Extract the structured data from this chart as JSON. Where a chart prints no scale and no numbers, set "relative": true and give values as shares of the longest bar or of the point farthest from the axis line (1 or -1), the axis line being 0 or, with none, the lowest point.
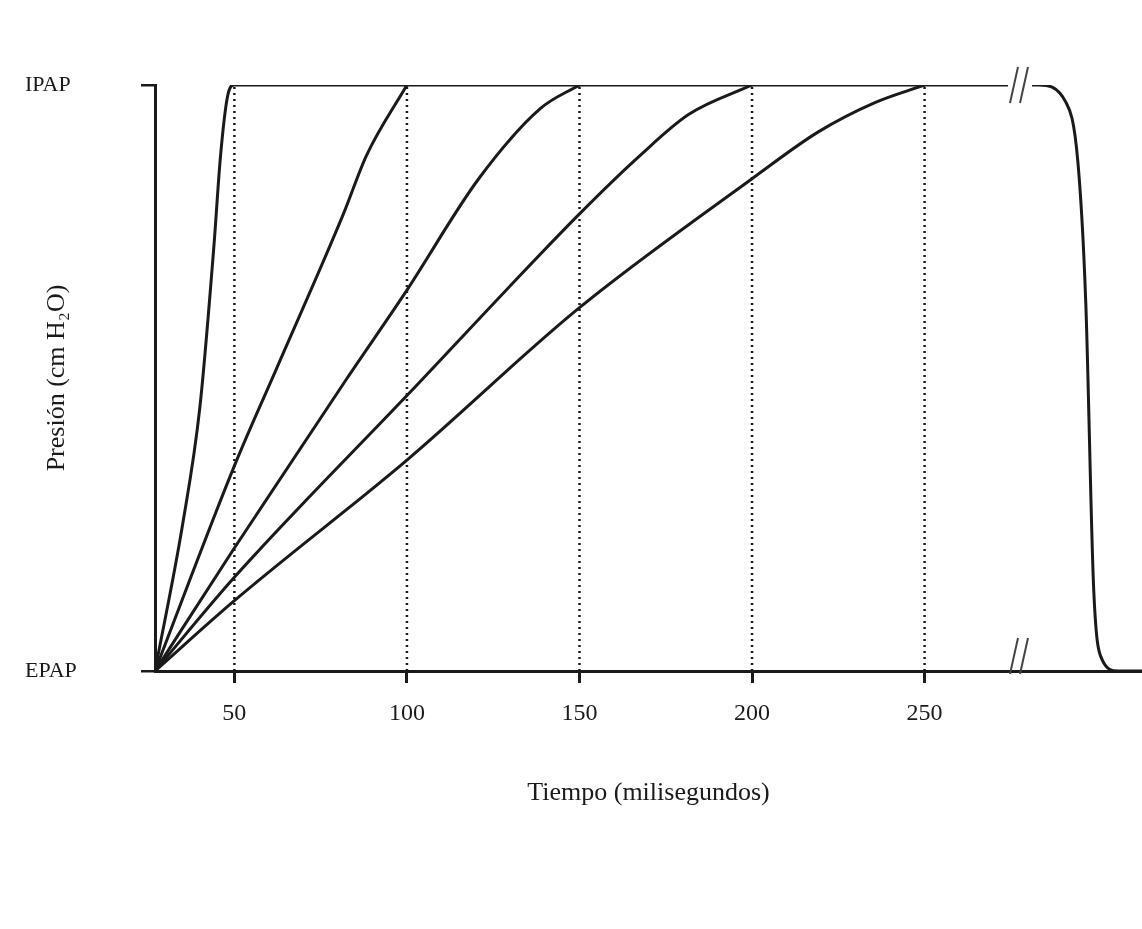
{
  "chart_data": {
    "type": "line",
    "xlabel": "Tiempo (milisegundos)",
    "ylabel": "Presión (cm H₂O)",
    "xlim": [
      27,
      313
    ],
    "xticks": [
      50,
      100,
      150,
      200,
      250
    ],
    "relative": true,
    "annotations": [
      "IPAP",
      "EPAP"
    ],
    "grid": false,
    "legend": false,
    "marker": "none",
    "line_style": "solid",
    "series": [
      {
        "color": "#1a1a1a",
        "x": [
          27,
          35,
          40,
          44,
          46,
          48,
          50,
          277,
          283,
          291,
          294.4,
          296.7,
          299,
          301.4,
          306,
          313
        ],
        "values": [
          0,
          0.25,
          0.45,
          0.72,
          0.88,
          0.98,
          1,
          1,
          1,
          0.97,
          0.87,
          0.63,
          0.14,
          0.02,
          0,
          0
        ]
      },
      {
        "color": "#1a1a1a",
        "x": [
          27,
          50,
          62.5,
          81.6,
          88.3,
          100
        ],
        "values": [
          0,
          0.35,
          0.52,
          0.78,
          0.88,
          1
        ]
      },
      {
        "color": "#1a1a1a",
        "x": [
          27,
          50,
          82.7,
          100,
          120.8,
          138.7,
          150
        ],
        "values": [
          0,
          0.21,
          0.5,
          0.65,
          0.84,
          0.96,
          1
        ]
      },
      {
        "color": "#1a1a1a",
        "x": [
          27,
          50,
          100,
          150,
          167.6,
          181.7,
          200
        ],
        "values": [
          0,
          0.16,
          0.47,
          0.78,
          0.88,
          0.95,
          1
        ]
      },
      {
        "color": "#1a1a1a",
        "x": [
          27,
          50,
          100,
          150,
          200,
          219.2,
          235.6,
          250
        ],
        "values": [
          0,
          0.12,
          0.36,
          0.62,
          0.84,
          0.92,
          0.97,
          1
        ]
      }
    ],
    "ref_lines": [
      {
        "axis": "x",
        "value": 50,
        "color": "#1a1a1a",
        "line_style": "dotted"
      },
      {
        "axis": "x",
        "value": 100,
        "color": "#1a1a1a",
        "line_style": "dotted"
      },
      {
        "axis": "x",
        "value": 150,
        "color": "#1a1a1a",
        "line_style": "dotted"
      },
      {
        "axis": "x",
        "value": 200,
        "color": "#1a1a1a",
        "line_style": "dotted"
      },
      {
        "axis": "x",
        "value": 250,
        "color": "#1a1a1a",
        "line_style": "dotted"
      }
    ]
  }
}
